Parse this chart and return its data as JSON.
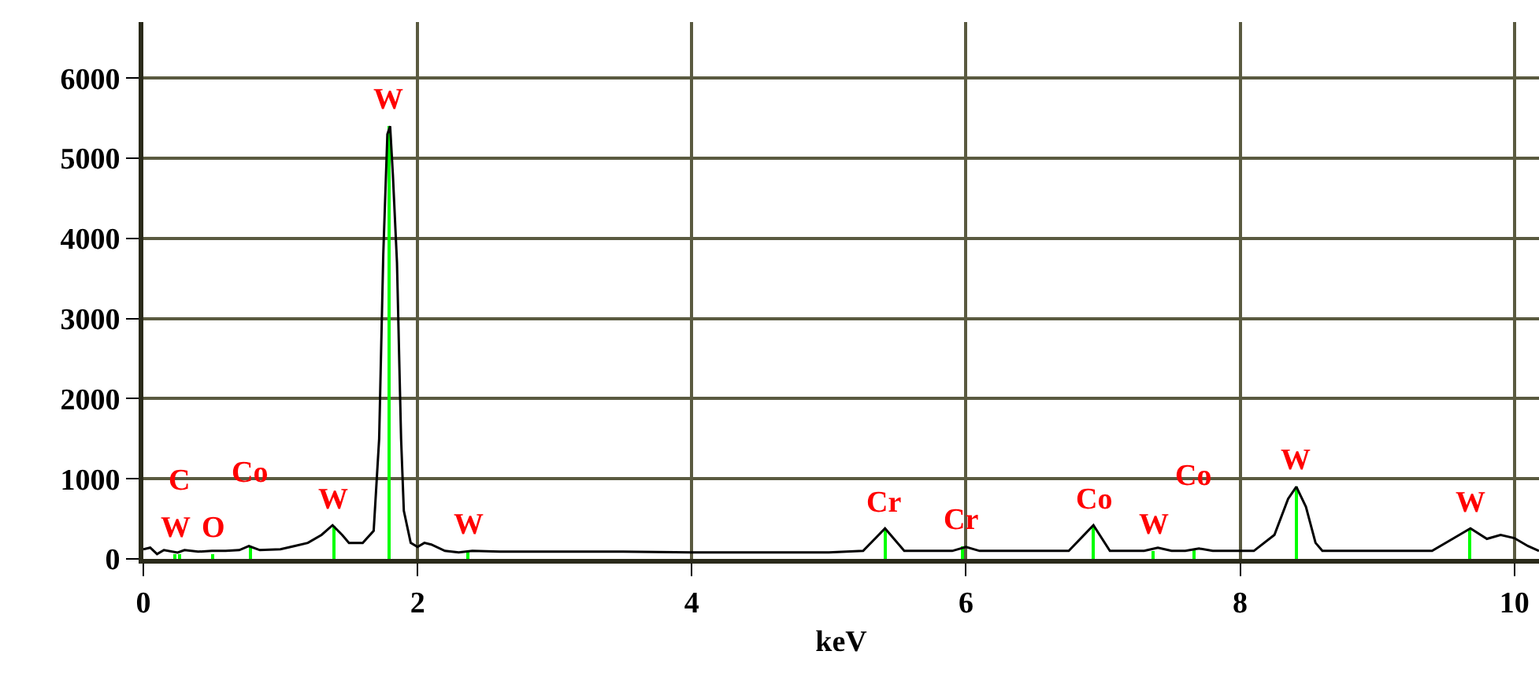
{
  "chart_data": {
    "type": "line",
    "xlabel": "keV",
    "xlim": [
      0,
      10.18
    ],
    "ylim": [
      0,
      6700
    ],
    "xticks": [
      0,
      2,
      4,
      6,
      8,
      10
    ],
    "yticks": [
      0,
      1000,
      2000,
      3000,
      4000,
      5000,
      6000
    ],
    "grid": true,
    "marker": "none",
    "line_style": "solid",
    "series": [
      {
        "color": "#000000",
        "x": [
          0.0,
          0.05,
          0.1,
          0.15,
          0.25,
          0.3,
          0.4,
          0.5,
          0.6,
          0.7,
          0.77,
          0.85,
          1.0,
          1.1,
          1.2,
          1.3,
          1.38,
          1.45,
          1.5,
          1.6,
          1.68,
          1.72,
          1.75,
          1.78,
          1.8,
          1.82,
          1.85,
          1.88,
          1.9,
          1.95,
          2.0,
          2.05,
          2.1,
          2.2,
          2.3,
          2.4,
          2.6,
          3.0,
          3.5,
          4.0,
          4.5,
          5.0,
          5.25,
          5.41,
          5.55,
          5.9,
          6.0,
          6.1,
          6.75,
          6.93,
          7.05,
          7.3,
          7.4,
          7.5,
          7.6,
          7.7,
          7.8,
          8.1,
          8.25,
          8.35,
          8.41,
          8.48,
          8.55,
          8.6,
          9.4,
          9.55,
          9.68,
          9.8,
          9.9,
          10.0,
          10.1,
          10.18
        ],
        "values": [
          120,
          140,
          60,
          110,
          80,
          110,
          90,
          100,
          100,
          110,
          160,
          110,
          120,
          160,
          200,
          300,
          420,
          300,
          200,
          200,
          350,
          1500,
          3800,
          5300,
          5400,
          4800,
          3700,
          1500,
          600,
          200,
          150,
          200,
          180,
          100,
          80,
          100,
          90,
          90,
          90,
          80,
          80,
          80,
          100,
          380,
          100,
          100,
          150,
          100,
          100,
          420,
          100,
          100,
          140,
          100,
          100,
          130,
          100,
          100,
          300,
          750,
          900,
          650,
          200,
          100,
          100,
          250,
          380,
          250,
          300,
          260,
          160,
          100
        ]
      },
      {
        "type": "bar",
        "color": "#00ff00",
        "x": [
          0.23,
          0.26,
          0.51,
          0.78,
          1.39,
          1.79,
          2.37,
          5.41,
          5.97,
          6.93,
          7.37,
          7.66,
          8.41,
          9.68
        ],
        "values": [
          60,
          60,
          50,
          150,
          420,
          5400,
          100,
          380,
          150,
          420,
          100,
          110,
          900,
          380
        ]
      }
    ],
    "annotations": [
      {
        "text": "W",
        "x": 0.23,
        "y": 60
      },
      {
        "text": "C",
        "x": 0.26,
        "y": 60
      },
      {
        "text": "O",
        "x": 0.51,
        "y": 50
      },
      {
        "text": "Co",
        "x": 0.78,
        "y": 150
      },
      {
        "text": "W",
        "x": 1.39,
        "y": 420
      },
      {
        "text": "W",
        "x": 1.79,
        "y": 5400
      },
      {
        "text": "W",
        "x": 2.37,
        "y": 100
      },
      {
        "text": "Cr",
        "x": 5.41,
        "y": 380
      },
      {
        "text": "Cr",
        "x": 5.97,
        "y": 150
      },
      {
        "text": "Co",
        "x": 6.93,
        "y": 420
      },
      {
        "text": "W",
        "x": 7.37,
        "y": 100
      },
      {
        "text": "Co",
        "x": 7.66,
        "y": 110
      },
      {
        "text": "W",
        "x": 8.41,
        "y": 900
      },
      {
        "text": "W",
        "x": 9.68,
        "y": 380
      }
    ]
  }
}
